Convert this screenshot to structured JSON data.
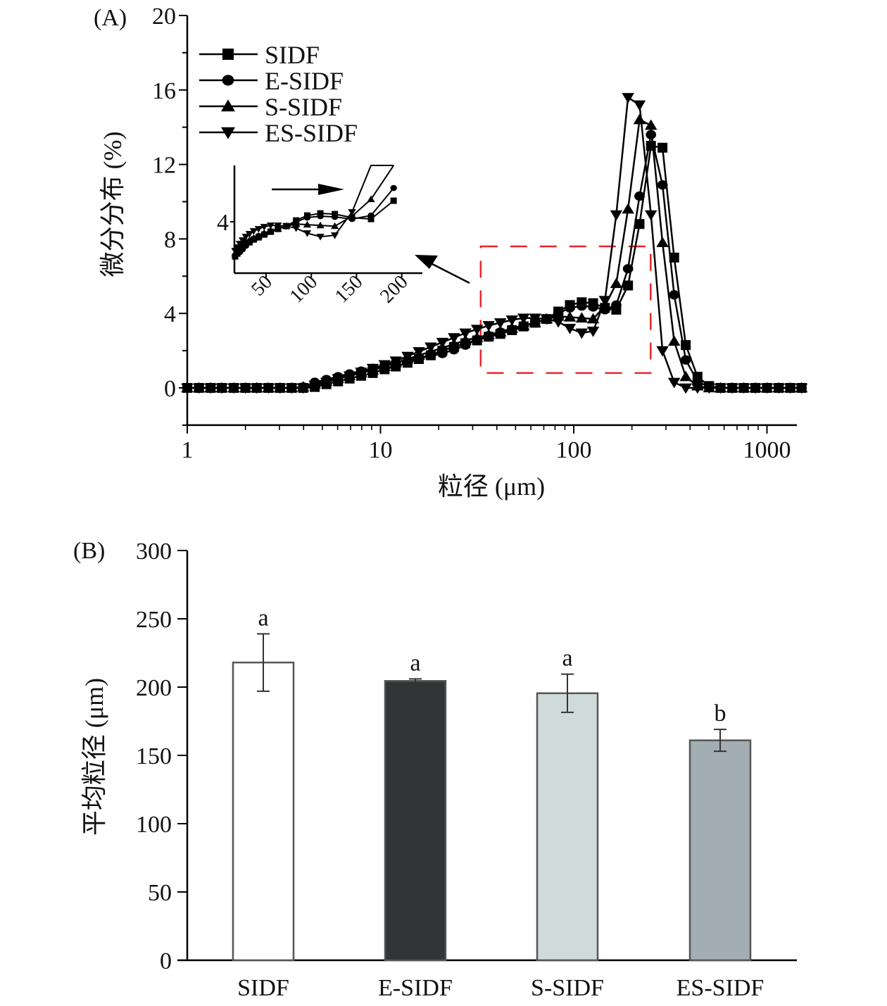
{
  "chart_data": [
    {
      "panel": "(A)",
      "type": "line",
      "title": "",
      "xlabel": "粒径 (μm)",
      "ylabel": "微分分布 (%)",
      "xscale": "log",
      "xlim": [
        1,
        1600
      ],
      "ylim": [
        -2,
        20
      ],
      "xticks": [
        "1",
        "10",
        "100",
        "1000"
      ],
      "xtick_values": [
        1,
        10,
        100,
        1000
      ],
      "yticks": [
        "0",
        "4",
        "8",
        "12",
        "16",
        "20"
      ],
      "ytick_values": [
        0,
        4,
        8,
        12,
        16,
        20
      ],
      "grid": false,
      "legend_position": "top-left",
      "series": [
        {
          "name": "SIDF",
          "marker": "square",
          "x": [
            1,
            1.15,
            1.32,
            1.51,
            1.74,
            2,
            2.29,
            2.63,
            3.02,
            3.47,
            3.98,
            4.57,
            5.25,
            6.03,
            6.92,
            7.94,
            9.12,
            10.5,
            12,
            13.8,
            15.8,
            18.2,
            20.9,
            24,
            27.5,
            31.6,
            36.3,
            41.7,
            47.9,
            55,
            63.1,
            72.4,
            83.2,
            95.5,
            110,
            126,
            145,
            166,
            191,
            219,
            251,
            288,
            331,
            380,
            437,
            502,
            575,
            661,
            759,
            871,
            1000,
            1150,
            1320,
            1510
          ],
          "values": [
            0,
            0,
            0,
            0,
            0,
            0,
            0,
            0,
            0,
            0,
            0,
            0.05,
            0.2,
            0.35,
            0.5,
            0.65,
            0.8,
            1.0,
            1.15,
            1.35,
            1.55,
            1.75,
            2.0,
            2.2,
            2.4,
            2.55,
            2.75,
            2.9,
            3.1,
            3.3,
            3.5,
            3.7,
            4.1,
            4.45,
            4.6,
            4.55,
            4.3,
            4.2,
            5.5,
            8.8,
            13.0,
            12.9,
            7.0,
            2.3,
            0.6,
            0.1,
            0,
            0,
            0,
            0,
            0,
            0,
            0,
            0
          ]
        },
        {
          "name": "E-SIDF",
          "marker": "circle",
          "x": [
            1,
            1.15,
            1.32,
            1.51,
            1.74,
            2,
            2.29,
            2.63,
            3.02,
            3.47,
            3.98,
            4.57,
            5.25,
            6.03,
            6.92,
            7.94,
            9.12,
            10.5,
            12,
            13.8,
            15.8,
            18.2,
            20.9,
            24,
            27.5,
            31.6,
            36.3,
            41.7,
            47.9,
            55,
            63.1,
            72.4,
            83.2,
            95.5,
            110,
            126,
            145,
            166,
            191,
            219,
            251,
            288,
            331,
            380,
            437,
            502,
            575,
            661,
            759,
            871,
            1000,
            1150,
            1320,
            1510
          ],
          "values": [
            0,
            0,
            0,
            0,
            0,
            0,
            0,
            0,
            0,
            0,
            0.05,
            0.3,
            0.45,
            0.6,
            0.75,
            0.9,
            1.05,
            1.2,
            1.35,
            1.5,
            1.6,
            1.75,
            1.85,
            2.05,
            2.3,
            2.6,
            2.8,
            3.0,
            3.15,
            3.35,
            3.5,
            3.7,
            4.0,
            4.3,
            4.4,
            4.35,
            4.2,
            4.45,
            6.4,
            10.3,
            13.6,
            10.9,
            5.0,
            1.5,
            0.35,
            0.05,
            0,
            0,
            0,
            0,
            0,
            0,
            0,
            0
          ]
        },
        {
          "name": "S-SIDF",
          "marker": "triangle-up",
          "x": [
            1,
            1.15,
            1.32,
            1.51,
            1.74,
            2,
            2.29,
            2.63,
            3.02,
            3.47,
            3.98,
            4.57,
            5.25,
            6.03,
            6.92,
            7.94,
            9.12,
            10.5,
            12,
            13.8,
            15.8,
            18.2,
            20.9,
            24,
            27.5,
            31.6,
            36.3,
            41.7,
            47.9,
            55,
            63.1,
            72.4,
            83.2,
            95.5,
            110,
            126,
            145,
            166,
            191,
            219,
            251,
            288,
            331,
            380,
            437,
            502,
            575,
            661,
            759,
            871,
            1000,
            1150,
            1320,
            1510
          ],
          "values": [
            0,
            0,
            0,
            0,
            0,
            0,
            0,
            0,
            0,
            0,
            0.05,
            0.2,
            0.35,
            0.5,
            0.65,
            0.8,
            0.95,
            1.15,
            1.35,
            1.55,
            1.75,
            1.95,
            2.15,
            2.35,
            2.55,
            2.7,
            2.85,
            3.0,
            3.2,
            3.35,
            3.5,
            3.7,
            3.85,
            3.8,
            3.75,
            3.7,
            4.4,
            5.6,
            9.6,
            14.4,
            14.1,
            7.8,
            2.5,
            0.6,
            0.1,
            0,
            0,
            0,
            0,
            0,
            0,
            0,
            0,
            0
          ]
        },
        {
          "name": "ES-SIDF",
          "marker": "triangle-down",
          "x": [
            1,
            1.15,
            1.32,
            1.51,
            1.74,
            2,
            2.29,
            2.63,
            3.02,
            3.47,
            3.98,
            4.57,
            5.25,
            6.03,
            6.92,
            7.94,
            9.12,
            10.5,
            12,
            13.8,
            15.8,
            18.2,
            20.9,
            24,
            27.5,
            31.6,
            36.3,
            41.7,
            47.9,
            55,
            63.1,
            72.4,
            83.2,
            95.5,
            110,
            126,
            145,
            166,
            191,
            219,
            251,
            288,
            331,
            380,
            437,
            502,
            575,
            661,
            759,
            871,
            1000,
            1150,
            1320,
            1510
          ],
          "values": [
            0,
            0,
            0,
            0,
            0,
            0,
            0,
            0,
            0,
            0,
            0,
            0.15,
            0.3,
            0.5,
            0.65,
            0.85,
            1.05,
            1.25,
            1.45,
            1.7,
            1.95,
            2.2,
            2.45,
            2.7,
            2.95,
            3.15,
            3.35,
            3.5,
            3.65,
            3.75,
            3.75,
            3.7,
            3.55,
            3.2,
            2.95,
            3.05,
            4.7,
            9.3,
            15.6,
            15.2,
            9.3,
            2.0,
            0.3,
            0,
            0,
            0,
            0,
            0,
            0,
            0,
            0,
            0,
            0,
            0
          ]
        }
      ],
      "annotations": {
        "zoom_box": {
          "x_range": [
            33,
            250
          ],
          "y_range": [
            0.8,
            7.6
          ],
          "color": "#e8262a",
          "style": "dashed"
        },
        "inset": {
          "description": "enlarged view of 50–200 μm region",
          "xticks": [
            "50",
            "100",
            "150",
            "200"
          ],
          "ytick": "4",
          "arrow_direction": "right"
        }
      }
    },
    {
      "panel": "(B)",
      "type": "bar",
      "title": "",
      "xlabel": "",
      "ylabel": "平均粒径 (μm)",
      "categories": [
        "SIDF",
        "E-SIDF",
        "S-SIDF",
        "ES-SIDF"
      ],
      "values": [
        218,
        204.5,
        195.5,
        161
      ],
      "errors": [
        21,
        1.5,
        14,
        8
      ],
      "significance": [
        "a",
        "a",
        "a",
        "b"
      ],
      "colors": [
        "#ffffff",
        "#323535",
        "#cfdada",
        "#a2aeb3"
      ],
      "ylim": [
        0,
        300
      ],
      "yticks": [
        "0",
        "50",
        "100",
        "150",
        "200",
        "250",
        "300"
      ],
      "ytick_values": [
        0,
        50,
        100,
        150,
        200,
        250,
        300
      ],
      "grid": false
    }
  ]
}
